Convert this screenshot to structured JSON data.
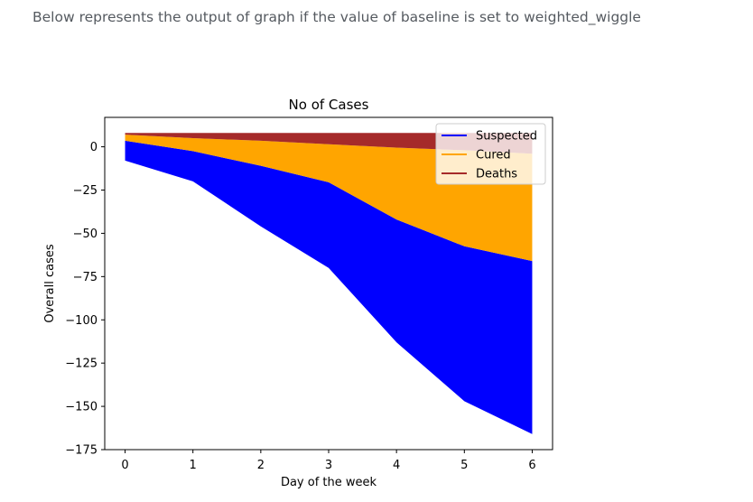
{
  "caption": "Below represents the output of graph if the value of baseline is set to weighted_wiggle",
  "chart_data": {
    "type": "area",
    "stacked": true,
    "baseline": "weighted_wiggle",
    "title": "No of Cases",
    "xlabel": "Day of the week",
    "ylabel": "Overall cases",
    "xlim": [
      -0.3,
      6.3
    ],
    "ylim": [
      -175,
      17
    ],
    "x": [
      0,
      1,
      2,
      3,
      4,
      5,
      6
    ],
    "xticks": [
      "0",
      "1",
      "2",
      "3",
      "4",
      "5",
      "6"
    ],
    "yticks": [
      0,
      -25,
      -50,
      -75,
      -100,
      -125,
      -150,
      -175
    ],
    "yticklabels": [
      "0",
      "−25",
      "−50",
      "−75",
      "−100",
      "−125",
      "−150",
      "−175"
    ],
    "boundaries": {
      "bottom": [
        -8,
        -20,
        -46,
        -70,
        -113,
        -147,
        -166
      ],
      "suspected_top": [
        3.5,
        -2.5,
        -11,
        -20.5,
        -42,
        -57.5,
        -66
      ],
      "cured_top": [
        7,
        5,
        3.5,
        1.5,
        -0.5,
        -2,
        -4
      ],
      "deaths_top": [
        8,
        8,
        8,
        8,
        8,
        8,
        8
      ]
    },
    "series": [
      {
        "name": "Suspected",
        "color": "#0000ff",
        "lower": "bottom",
        "upper": "suspected_top"
      },
      {
        "name": "Cured",
        "color": "#ffa500",
        "lower": "suspected_top",
        "upper": "cured_top"
      },
      {
        "name": "Deaths",
        "color": "#a52a2a",
        "lower": "cured_top",
        "upper": "deaths_top"
      }
    ],
    "legend_position": "top-right",
    "grid": false
  }
}
